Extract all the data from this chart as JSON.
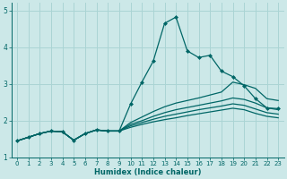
{
  "xlabel": "Humidex (Indice chaleur)",
  "bg_color": "#cce8e8",
  "grid_color": "#aad4d4",
  "line_color": "#006666",
  "xlim": [
    -0.5,
    23.5
  ],
  "ylim": [
    1.0,
    5.2
  ],
  "xticks": [
    0,
    1,
    2,
    3,
    4,
    5,
    6,
    7,
    8,
    9,
    10,
    11,
    12,
    13,
    14,
    15,
    16,
    17,
    18,
    19,
    20,
    21,
    22,
    23
  ],
  "yticks": [
    1,
    2,
    3,
    4,
    5
  ],
  "series": [
    [
      1.45,
      1.55,
      1.65,
      1.72,
      1.7,
      1.47,
      1.65,
      1.75,
      1.72,
      1.72,
      2.45,
      3.05,
      3.62,
      4.65,
      4.82,
      3.9,
      3.72,
      3.78,
      3.35,
      3.2,
      2.95,
      2.6,
      2.35,
      2.33
    ],
    [
      1.45,
      1.55,
      1.65,
      1.72,
      1.7,
      1.47,
      1.65,
      1.75,
      1.72,
      1.72,
      1.95,
      2.1,
      2.25,
      2.38,
      2.48,
      2.55,
      2.62,
      2.7,
      2.78,
      3.05,
      2.98,
      2.88,
      2.6,
      2.55
    ],
    [
      1.45,
      1.55,
      1.65,
      1.72,
      1.7,
      1.47,
      1.65,
      1.75,
      1.72,
      1.72,
      1.9,
      2.0,
      2.12,
      2.22,
      2.3,
      2.36,
      2.42,
      2.48,
      2.54,
      2.62,
      2.58,
      2.48,
      2.35,
      2.3
    ],
    [
      1.45,
      1.55,
      1.65,
      1.72,
      1.7,
      1.47,
      1.65,
      1.75,
      1.72,
      1.72,
      1.86,
      1.95,
      2.04,
      2.12,
      2.18,
      2.24,
      2.3,
      2.35,
      2.4,
      2.46,
      2.42,
      2.32,
      2.22,
      2.18
    ],
    [
      1.45,
      1.55,
      1.65,
      1.72,
      1.7,
      1.47,
      1.65,
      1.75,
      1.72,
      1.72,
      1.82,
      1.9,
      1.97,
      2.03,
      2.08,
      2.14,
      2.19,
      2.24,
      2.29,
      2.34,
      2.3,
      2.2,
      2.12,
      2.08
    ]
  ],
  "marker_series": 0
}
